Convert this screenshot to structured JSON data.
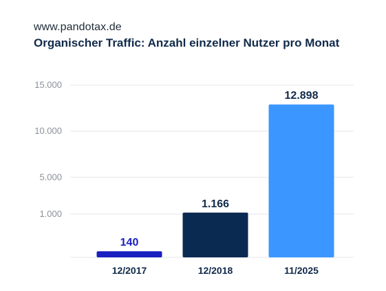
{
  "header": {
    "site": "www.pandotax.de",
    "title": "Organischer Traffic: Anzahl einzelner Nutzer pro Monat"
  },
  "chart_data": {
    "type": "bar",
    "title": "Organischer Traffic: Anzahl einzelner Nutzer pro Monat",
    "xlabel": "",
    "ylabel": "",
    "axis_scale": "piecewise (0–1.000 and 1.000–15.000 segments)",
    "grid": true,
    "legend": "none",
    "y_ticks": [
      {
        "value": 1000,
        "label": "1.000"
      },
      {
        "value": 5000,
        "label": "5.000"
      },
      {
        "value": 10000,
        "label": "10.000"
      },
      {
        "value": 15000,
        "label": "15.000"
      }
    ],
    "ylim": [
      0,
      15000
    ],
    "categories": [
      "12/2017",
      "12/2018",
      "11/2025"
    ],
    "values": [
      140,
      1166,
      12898
    ],
    "value_labels": [
      "140",
      "1.166",
      "12.898"
    ],
    "colors": [
      "#1a1fbf",
      "#0b2a52",
      "#3b97ff"
    ],
    "gridline_color": "#e3e5e8"
  }
}
